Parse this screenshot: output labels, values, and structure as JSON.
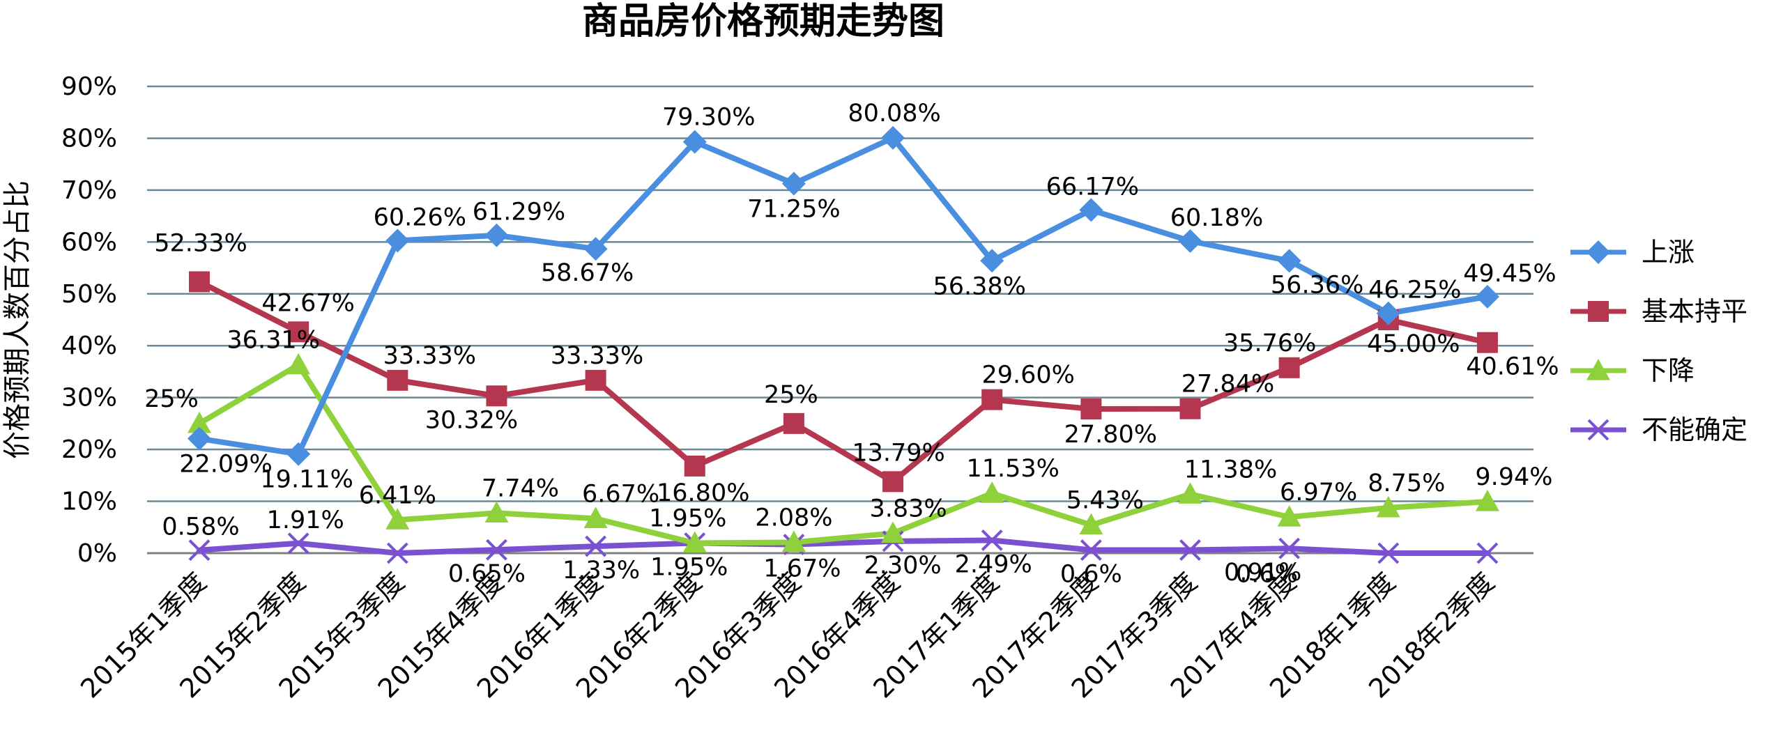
{
  "chart_data": {
    "type": "line",
    "title": "商品房价格预期走势图",
    "ylabel": "价格预期人数百分占比",
    "ylim": [
      0,
      90
    ],
    "yticks": [
      "0%",
      "10%",
      "20%",
      "30%",
      "40%",
      "50%",
      "60%",
      "70%",
      "80%",
      "90%"
    ],
    "grid": true,
    "legend_position": "right",
    "categories": [
      "2015年1季度",
      "2015年2季度",
      "2015年3季度",
      "2015年4季度",
      "2016年1季度",
      "2016年2季度",
      "2016年3季度",
      "2016年4季度",
      "2017年1季度",
      "2017年2季度",
      "2017年3季度",
      "2017年4季度",
      "2018年1季度",
      "2018年2季度"
    ],
    "series": [
      {
        "name": "上涨",
        "marker": "diamond",
        "color": "#4a8ee0",
        "values": [
          22.09,
          19.11,
          60.26,
          61.29,
          58.67,
          79.3,
          71.25,
          80.08,
          56.38,
          66.17,
          60.18,
          56.36,
          46.25,
          49.45
        ],
        "labels": [
          "22.09%",
          "19.11%",
          "60.26%",
          "61.29%",
          "58.67%",
          "79.30%",
          "71.25%",
          "80.08%",
          "56.38%",
          "66.17%",
          "60.18%",
          "56.36%",
          "46.25%",
          "49.45%"
        ]
      },
      {
        "name": "基本持平",
        "marker": "square",
        "color": "#b5364f",
        "values": [
          52.33,
          42.67,
          33.33,
          30.32,
          33.33,
          16.8,
          25,
          13.79,
          29.6,
          27.8,
          27.84,
          35.76,
          45.0,
          40.61
        ],
        "labels": [
          "52.33%",
          "42.67%",
          "33.33%",
          "30.32%",
          "33.33%",
          "16.80%",
          "25%",
          "13.79%",
          "29.60%",
          "27.80%",
          "27.84%",
          "35.76%",
          "45.00%",
          "40.61%"
        ]
      },
      {
        "name": "下降",
        "marker": "triangle",
        "color": "#8fd13b",
        "values": [
          25,
          36.31,
          6.41,
          7.74,
          6.67,
          1.95,
          2.08,
          3.83,
          11.53,
          5.43,
          11.38,
          6.97,
          8.75,
          9.94
        ],
        "labels": [
          "25%",
          "36.31%",
          "6.41%",
          "7.74%",
          "6.67%",
          "1.95%",
          "2.08%",
          "3.83%",
          "11.53%",
          "5.43%",
          "11.38%",
          "6.97%",
          "8.75%",
          "9.94%"
        ]
      },
      {
        "name": "不能确定",
        "marker": "x",
        "color": "#7a52d1",
        "values": [
          0.58,
          1.91,
          0,
          0.65,
          1.33,
          1.95,
          1.67,
          2.3,
          2.49,
          0.6,
          0.6,
          0.91,
          0,
          0
        ],
        "labels": [
          "0.58%",
          "1.91%",
          "",
          "0.65%",
          "1.33%",
          "1.95%",
          "1.67%",
          "2.30%",
          "2.49%",
          "0.6%",
          "0.6%",
          "0.91%",
          "",
          ""
        ]
      }
    ]
  }
}
